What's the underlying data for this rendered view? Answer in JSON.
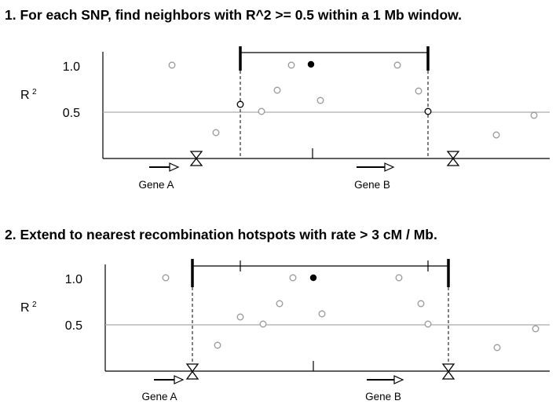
{
  "panels": [
    {
      "title": "1. For each SNP, find neighbors with R^2 >= 0.5 within a 1 Mb window.",
      "y_label": "R",
      "y_label_sup": "2",
      "y_ticks": [
        "1.0",
        "0.5"
      ],
      "threshold": 0.5,
      "genes": [
        {
          "label": "Gene A",
          "direction": "right"
        },
        {
          "label": "Gene B",
          "direction": "right"
        }
      ],
      "hotspots": 2,
      "index_snp_r2": 1.0,
      "other_snps_r2": [
        1.0,
        0.28,
        0.5,
        0.73,
        1.0,
        0.63,
        1.0,
        0.73,
        0.25,
        0.46
      ],
      "window_boundary_snps_r2": [
        0.58,
        0.5
      ],
      "bracket": "1 Mb window"
    },
    {
      "title": "2. Extend to nearest recombination hotspots with rate > 3 cM / Mb.",
      "y_label": "R",
      "y_label_sup": "2",
      "y_ticks": [
        "1.0",
        "0.5"
      ],
      "threshold": 0.5,
      "genes": [
        {
          "label": "Gene A",
          "direction": "right"
        },
        {
          "label": "Gene B",
          "direction": "right"
        }
      ],
      "hotspots": 2,
      "index_snp_r2": 1.0,
      "other_snps_r2": [
        1.0,
        0.28,
        0.59,
        0.5,
        0.73,
        1.0,
        0.63,
        1.0,
        0.73,
        0.5,
        0.25,
        0.46
      ],
      "bracket": "extended to hotspots"
    }
  ],
  "colors": {
    "axis": "#000000",
    "threshold_line": "#aaaaaa",
    "snp_open": "#999999",
    "snp_index": "#000000"
  }
}
